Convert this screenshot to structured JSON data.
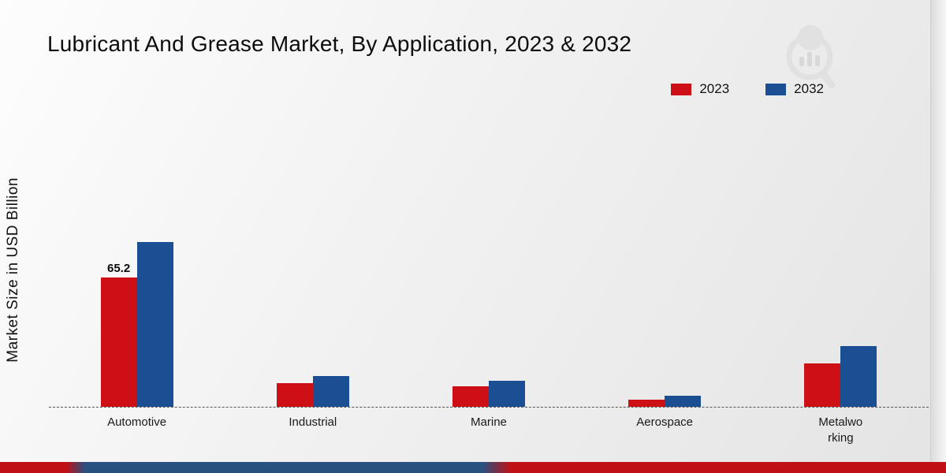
{
  "page": {
    "title": "Lubricant And Grease Market, By Application, 2023 & 2032",
    "y_axis_label": "Market Size in USD Billion"
  },
  "colors": {
    "series_2023": "#cc1016",
    "series_2032": "#1b4f93",
    "brand_red": "#c01015",
    "brand_blue": "#28517f"
  },
  "icons": {
    "logo": "magnifier-bar-chart-watermark-icon"
  },
  "chart_data": {
    "type": "bar",
    "title": "Lubricant And Grease Market, By Application, 2023 & 2032",
    "xlabel": "",
    "ylabel": "Market Size in USD Billion",
    "categories": [
      "Automotive",
      "Industrial",
      "Marine",
      "Aerospace",
      "Metalwo\nrking"
    ],
    "series": [
      {
        "name": "2023",
        "color": "#cc1016",
        "values": [
          65.2,
          12,
          10.5,
          3.5,
          22
        ]
      },
      {
        "name": "2032",
        "color": "#1b4f93",
        "values": [
          83,
          15.5,
          13,
          5.5,
          30.5
        ]
      }
    ],
    "ylim": [
      0,
      90
    ],
    "grid": false,
    "legend_position": "top-right",
    "data_labels": [
      {
        "series": "2023",
        "category_index": 0,
        "text": "65.2"
      }
    ]
  }
}
